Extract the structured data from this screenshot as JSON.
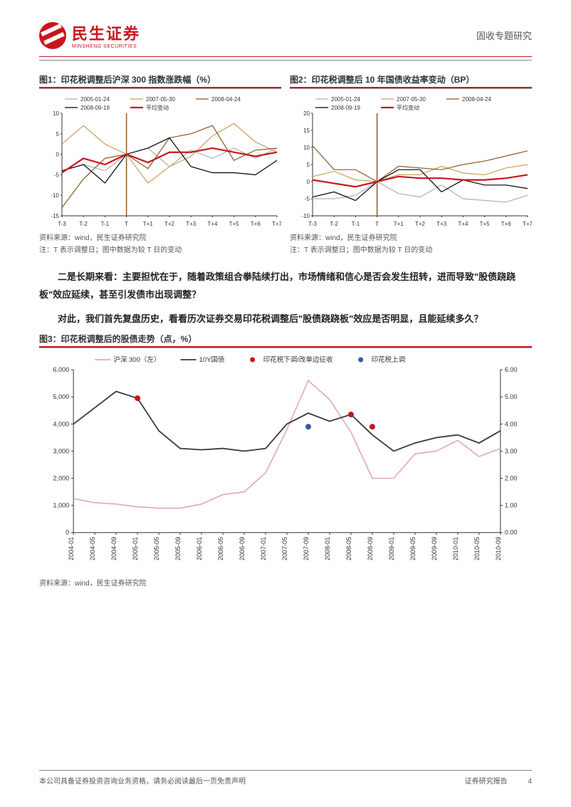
{
  "header": {
    "company_cn": "民生证券",
    "company_en": "MINSHENG SECURITIES",
    "doc_type": "固收专题研究"
  },
  "chart1": {
    "title": "图1：印花税调整后沪深 300 指数涨跌幅（%）",
    "type": "line",
    "x_labels": [
      "T-3",
      "T-2",
      "T-1",
      "T",
      "T+1",
      "T+2",
      "T+3",
      "T+4",
      "T+5",
      "T+6",
      "T+7"
    ],
    "ylim": [
      -15,
      10
    ],
    "ytick_step": 5,
    "legend": [
      "2005-01-24",
      "2007-05-30",
      "2008-04-24",
      "2008-09-19",
      "平均变动"
    ],
    "colors": [
      "#b0b0b0",
      "#c9a15a",
      "#8b5a2b",
      "#000000",
      "#c8161d"
    ],
    "series": [
      [
        -4.0,
        -2.5,
        -4.0,
        0,
        1.5,
        -3.0,
        1.0,
        -1.0,
        1.5,
        -1.0,
        1.5
      ],
      [
        2.5,
        7.0,
        2.5,
        0,
        -7.0,
        -3.0,
        -0.5,
        4.5,
        7.5,
        3.0,
        0.5
      ],
      [
        -13.0,
        -6.0,
        -1.0,
        0,
        -3.5,
        4.0,
        5.0,
        7.0,
        -1.5,
        1.0,
        1.5
      ],
      [
        -4.0,
        -2.5,
        -7.0,
        0,
        1.5,
        4.0,
        -3.0,
        -4.5,
        -4.5,
        -5.0,
        -1.5
      ],
      [
        -4.5,
        -1.0,
        -2.5,
        0,
        -2.0,
        0.5,
        0.5,
        1.5,
        0.5,
        -0.5,
        0.5
      ]
    ],
    "avg_line_width": 2.2,
    "axis_color": "#333",
    "bg": "#ffffff",
    "title_fontsize": 12,
    "source": "资料来源：wind，民生证券研究院",
    "note": "注：T 表示调整日；图中数据为较 T 日的变动"
  },
  "chart2": {
    "title": "图2：印花税调整后 10 年国债收益率变动（BP）",
    "type": "line",
    "x_labels": [
      "T-3",
      "T-2",
      "T-1",
      "T",
      "T+1",
      "T+2",
      "T+3",
      "T+4",
      "T+5",
      "T+6",
      "T+7"
    ],
    "ylim": [
      -10,
      20
    ],
    "ytick_step": 5,
    "legend": [
      "2005-01-24",
      "2007-05-30",
      "2008-04-24",
      "2008-09-19",
      "平均变动"
    ],
    "colors": [
      "#b0b0b0",
      "#c9a15a",
      "#8b5a2b",
      "#000000",
      "#c8161d"
    ],
    "series": [
      [
        -5.0,
        -5.0,
        -4.0,
        0,
        -3.5,
        -4.5,
        -1.0,
        -5.0,
        -5.5,
        -6.0,
        -4.0
      ],
      [
        1.5,
        3.0,
        0.5,
        0,
        2.0,
        2.0,
        4.5,
        2.5,
        2.0,
        4.0,
        5.0
      ],
      [
        10.5,
        3.5,
        3.5,
        0,
        4.5,
        4.0,
        3.5,
        5.0,
        6.0,
        7.5,
        9.0
      ],
      [
        -4.5,
        -3.0,
        -5.5,
        0,
        3.5,
        3.5,
        -3.0,
        0.5,
        -1.0,
        -1.0,
        -2.0
      ],
      [
        0.5,
        -0.5,
        -1.5,
        0,
        1.5,
        1.0,
        1.0,
        0.5,
        0.5,
        1.0,
        2.0
      ]
    ],
    "avg_line_width": 2.2,
    "axis_color": "#333",
    "bg": "#ffffff",
    "title_fontsize": 12,
    "source": "资料来源：wind，民生证券研究院",
    "note": "注：T 表示调整日；图中数据为较 T 日的变动"
  },
  "paragraph1": "二是长期来看：主要担忧在于，随着政策组合拳陆续打出，市场情绪和信心是否会发生扭转，进而导致\"股债跷跷板\"效应延续，甚至引发债市出现调整？",
  "paragraph2": "对此，我们首先复盘历史，看看历次证券交易印花税调整后\"股债跷跷板\"效应是否明显，且能延续多久？",
  "chart3": {
    "title": "图3：印花税调整后的股债走势（点，%）",
    "type": "dual-axis-line-scatter",
    "legend": [
      "沪深 300（左）",
      "10Y国债",
      "印花税下调/改单边征收",
      "印花税上调"
    ],
    "legend_colors": [
      "#e6a6b0",
      "#3a3a3a",
      "#c8161d",
      "#2e5fa3"
    ],
    "x_labels": [
      "2004-01",
      "2004-05",
      "2004-09",
      "2005-01",
      "2005-05",
      "2005-09",
      "2006-01",
      "2006-05",
      "2006-09",
      "2007-01",
      "2007-05",
      "2007-09",
      "2008-01",
      "2008-05",
      "2008-09",
      "2009-01",
      "2009-05",
      "2009-09",
      "2010-01",
      "2010-05",
      "2010-09"
    ],
    "left_ylim": [
      0,
      6000
    ],
    "left_ytick_step": 1000,
    "right_ylim": [
      0.0,
      6.0
    ],
    "right_ytick_step": 1.0,
    "csi300_color": "#e6a6b0",
    "bond_color": "#3a3a3a",
    "csi300": [
      1250,
      1100,
      1050,
      950,
      900,
      900,
      1050,
      1400,
      1500,
      2200,
      3800,
      5600,
      4900,
      3700,
      2000,
      2000,
      2900,
      3000,
      3400,
      2800,
      3100
    ],
    "bond10y": [
      4.0,
      4.6,
      5.2,
      4.95,
      3.75,
      3.1,
      3.05,
      3.1,
      3.0,
      3.1,
      4.0,
      4.4,
      4.1,
      4.35,
      3.6,
      3.0,
      3.3,
      3.5,
      3.6,
      3.3,
      3.75
    ],
    "red_points": [
      {
        "xi": 3,
        "y": 4.95
      },
      {
        "xi": 13,
        "y": 4.35
      },
      {
        "xi": 14,
        "y": 3.9
      }
    ],
    "blue_points": [
      {
        "xi": 11,
        "y": 3.9
      }
    ],
    "red_marker": "#c8161d",
    "blue_marker": "#2e5fa3",
    "axis_color": "#333",
    "bg": "#ffffff",
    "source": "资料来源：wind，民生证券研究院"
  },
  "footer": {
    "left": "本公司具备证券投资咨询业务资格，请务必阅读最后一页免责声明",
    "right": "证券研究报告",
    "page": "4"
  }
}
